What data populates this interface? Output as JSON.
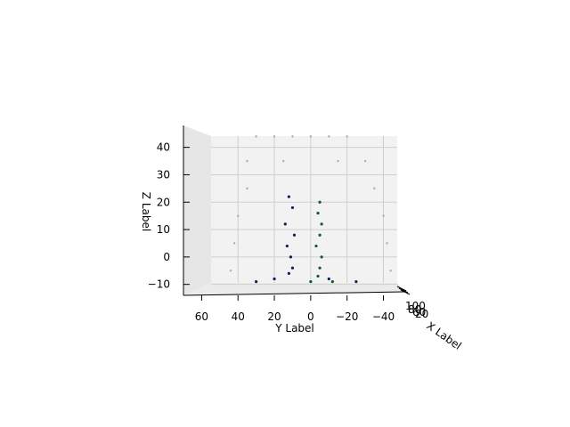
{
  "chart_data": {
    "type": "scatter",
    "projection": "3d",
    "view": "side view looking along the X axis",
    "xlabel": "X Label",
    "ylabel": "Y Label",
    "zlabel": "Z Label",
    "x_tick_labels_visible": [
      "20",
      "100",
      "80",
      "60"
    ],
    "y_ticks": [
      60,
      40,
      20,
      0,
      -20,
      -40
    ],
    "y_tick_labels": [
      "60",
      "40",
      "20",
      "0",
      "−20",
      "−40"
    ],
    "z_ticks": [
      40,
      30,
      20,
      10,
      0,
      -10
    ],
    "z_tick_labels": [
      "40",
      "30",
      "20",
      "10",
      "0",
      "−10"
    ],
    "ylim": [
      70,
      -52
    ],
    "zlim": [
      -14,
      48
    ],
    "grid": true,
    "series": [
      {
        "color": "#7fb8d6",
        "kind": "sparse light grid of points filling the upper region of the box",
        "points": [
          [
            -20,
            44
          ],
          [
            -10,
            44
          ],
          [
            0,
            44
          ],
          [
            10,
            44
          ],
          [
            20,
            44
          ],
          [
            30,
            44
          ],
          [
            -30,
            35
          ],
          [
            -15,
            35
          ],
          [
            15,
            35
          ],
          [
            35,
            35
          ],
          [
            -35,
            25
          ],
          [
            35,
            25
          ],
          [
            -40,
            15
          ],
          [
            40,
            15
          ],
          [
            -42,
            5
          ],
          [
            42,
            5
          ],
          [
            -44,
            -5
          ],
          [
            44,
            -5
          ]
        ]
      },
      {
        "color": "#0d1f5c",
        "kind": "dense navy column near y=10 plus floor band",
        "points": [
          [
            12,
            22
          ],
          [
            10,
            18
          ],
          [
            14,
            12
          ],
          [
            9,
            8
          ],
          [
            13,
            4
          ],
          [
            11,
            0
          ],
          [
            10,
            -4
          ],
          [
            12,
            -6
          ],
          [
            20,
            -8
          ],
          [
            -10,
            -8
          ],
          [
            30,
            -9
          ],
          [
            -25,
            -9
          ]
        ]
      },
      {
        "color": "#0b5a2a",
        "kind": "dense green column near y=-5",
        "points": [
          [
            -5,
            20
          ],
          [
            -4,
            16
          ],
          [
            -6,
            12
          ],
          [
            -5,
            8
          ],
          [
            -3,
            4
          ],
          [
            -6,
            0
          ],
          [
            -5,
            -4
          ],
          [
            -4,
            -7
          ],
          [
            0,
            -9
          ],
          [
            -12,
            -9
          ]
        ]
      }
    ]
  }
}
